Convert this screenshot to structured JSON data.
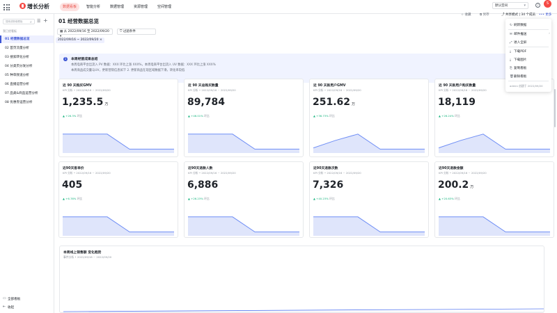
{
  "topbar": {
    "brand": "增长分析",
    "tabs": [
      "数据看板",
      "智能分析",
      "数据管理",
      "资源管理",
      "空间管理"
    ],
    "active_tab": 0,
    "space_select": "默认空间",
    "help_icon": "?",
    "avatar_text": "S",
    "accent": "#e8514a"
  },
  "sidebar": {
    "search_placeholder": "搜索或新增看板",
    "search_icon": "⌕",
    "filter_icon": "☰",
    "add_icon": "+",
    "caption": "我已经看板",
    "items": [
      {
        "label": "01 经营数据总览"
      },
      {
        "label": "02 首页流量分析"
      },
      {
        "label": "03 搜索转化分析"
      },
      {
        "label": "04 分类页分发分析"
      },
      {
        "label": "05 种草频道分析"
      },
      {
        "label": "06 直播运营分析"
      },
      {
        "label": "07 品类&商品运营分析"
      },
      {
        "label": "08 优惠券运营分析"
      }
    ],
    "active_item": 0,
    "footer": [
      {
        "icon": "▭",
        "label": "全部看板"
      },
      {
        "icon": "⇤",
        "label": "收起"
      }
    ]
  },
  "page": {
    "title": "01 经营数据总览",
    "actions": [
      {
        "icon": "☆",
        "label": "收藏"
      },
      {
        "icon": "⧉",
        "label": "另存"
      }
    ],
    "share_label": "共享模式",
    "share_count": "34 个成员",
    "more_label": "更多",
    "date_filter": "从 2022/09/16 至 2022/09/20",
    "filter_button": "过滤条件",
    "date_tag": "2022/09/16 ~ 2022/09/20",
    "accent": "#3c55d4"
  },
  "summary": {
    "title": "本周经营成果总结",
    "lines": [
      "本周电商平台出流入 PV 数据：XXX 环比上涨 XXX%，本周电商平台出流入 UV 数据：XXX 环比上涨 XXX%",
      "本周商品成交量与UV，更新营销信息如下 2. 更新商品在现区域数据下滑，转化率较低"
    ]
  },
  "cards": [
    {
      "title": "近 90 天购买GMV",
      "subtitle": "KPI 分析 • 2022/09/16 ~ 2022/09/20",
      "value": "1,235.5",
      "unit": "万",
      "change": "+26.3%",
      "change_label": "环比",
      "trend": [
        0.7,
        0.7,
        0.7,
        0.1,
        0.1,
        0.1
      ]
    },
    {
      "title": "近 90 天总购买数量",
      "subtitle": "KPI 分析 • 2022/09/16 ~ 2022/09/20",
      "value": "89,784",
      "unit": "",
      "change": "+46.01%",
      "change_label": "环比",
      "trend": [
        0.7,
        0.7,
        0.7,
        0.1,
        0.1,
        0.1
      ]
    },
    {
      "title": "近 90 天新用户GMV",
      "subtitle": "KPI 分析 • 2022/09/16 ~ 2022/09/20",
      "value": "251.62",
      "unit": "万",
      "change": "+36.73%",
      "change_label": "环比",
      "trend": [
        0.15,
        0.45,
        0.7,
        0.1,
        0.1,
        0.1
      ]
    },
    {
      "title": "近 90 天新用户购买数量",
      "subtitle": "KPI 分析 • 2022/09/16 ~ 2022/09/20",
      "value": "18,119",
      "unit": "",
      "change": "+26.24%",
      "change_label": "环比",
      "trend": [
        0.15,
        0.45,
        0.7,
        0.1,
        0.1,
        0.1
      ]
    },
    {
      "title": "近90天客单价",
      "subtitle": "KPI 分析 • 2022/09/16 ~ 2022/09/20",
      "value": "405",
      "unit": "",
      "change": "+6.78%",
      "change_label": "环比",
      "trend": [
        0.7,
        0.7,
        0.7,
        0.1,
        0.1,
        0.1
      ]
    },
    {
      "title": "近90天退款人数",
      "subtitle": "KPI 分析 • 2022/09/16 ~ 2022/09/20",
      "value": "6,886",
      "unit": "",
      "change": "+26.23%",
      "change_label": "环比",
      "trend": [
        0.7,
        0.7,
        0.7,
        0.1,
        0.1,
        0.1
      ]
    },
    {
      "title": "近90天退款次数",
      "subtitle": "KPI 分析 • 2022/09/16 ~ 2022/09/20",
      "value": "7,326",
      "unit": "",
      "change": "+40.23%",
      "change_label": "环比",
      "trend": [
        0.7,
        0.7,
        0.7,
        0.1,
        0.1,
        0.1
      ]
    },
    {
      "title": "近90天退款金额",
      "subtitle": "KPI 分析 • 2022/09/16 ~ 2022/09/20",
      "value": "200.2",
      "unit": "万",
      "change": "+20.63%",
      "change_label": "环比",
      "trend": [
        0.7,
        0.7,
        0.7,
        0.1,
        0.1,
        0.1
      ]
    }
  ],
  "trend_card": {
    "title": "本周线上销售额 变化趋势",
    "subtitle": "事件分析 • 2022/09/16 ~ 2022/09/20"
  },
  "more_menu": {
    "items": [
      {
        "icon": "↻",
        "label": "刷新数据"
      },
      {
        "icon": "✉",
        "label": "邮件推送",
        "arrow": "›"
      },
      {
        "icon": "⤢",
        "label": "进入全屏"
      },
      {
        "icon": "⤓",
        "label": "下载PDF"
      },
      {
        "icon": "⤓",
        "label": "下载图片"
      },
      {
        "icon": "⎘",
        "label": "复制看板"
      },
      {
        "icon": "🗑",
        "label": "删除看板"
      }
    ],
    "footer": "admin 创建于 2022/09/20"
  }
}
